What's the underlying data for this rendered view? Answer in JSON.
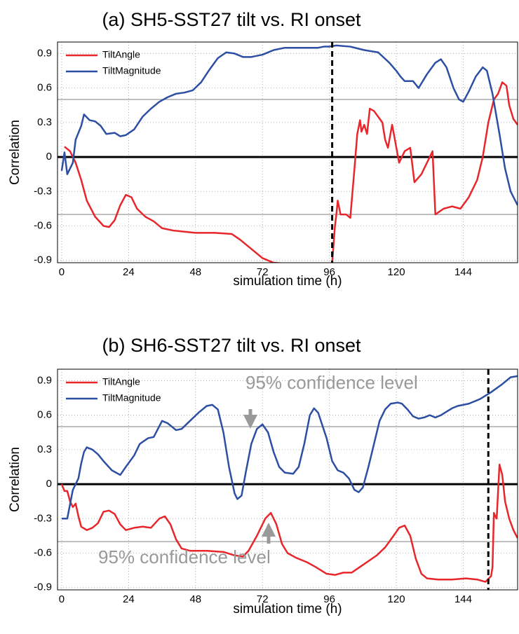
{
  "chart_data": [
    {
      "type": "line",
      "title": "(a) SH5-SST27 tilt vs. RI onset",
      "xlabel": "simulation time (h)",
      "ylabel": "Correlation",
      "xlim": [
        -1.5,
        163.5
      ],
      "ylim": [
        -0.92,
        1.0
      ],
      "xticks": [
        0,
        24,
        48,
        72,
        96,
        120,
        144
      ],
      "yticks": [
        -0.9,
        -0.6,
        -0.3,
        0,
        0.3,
        0.6,
        0.9
      ],
      "grid": true,
      "legend": "upper left",
      "confidence_lines": [
        0.5,
        -0.5
      ],
      "zero_line": 0,
      "event_line": 97,
      "series": [
        {
          "name": "TiltAngle",
          "color": "#e8262b",
          "x": [
            1,
            3,
            5,
            7,
            9,
            12,
            15,
            17,
            19,
            21,
            23,
            25,
            27,
            30,
            33,
            36,
            40,
            44,
            48,
            55,
            61,
            64,
            68,
            72,
            76,
            82,
            90,
            96,
            97,
            98,
            98.5,
            99,
            100,
            102,
            103.5,
            105,
            106,
            107,
            107.5,
            108.5,
            109.5,
            110.5,
            112,
            113.5,
            115,
            116,
            117,
            118.5,
            119.5,
            121,
            123,
            125,
            126.5,
            129,
            133,
            134,
            137,
            140,
            143,
            146,
            149,
            151,
            153,
            155,
            156.5,
            158,
            159.5,
            160.5,
            162,
            163.5
          ],
          "values": [
            0.09,
            0.05,
            -0.05,
            -0.2,
            -0.38,
            -0.52,
            -0.6,
            -0.61,
            -0.55,
            -0.42,
            -0.33,
            -0.35,
            -0.45,
            -0.52,
            -0.56,
            -0.62,
            -0.64,
            -0.65,
            -0.66,
            -0.66,
            -0.67,
            -0.72,
            -0.8,
            -0.88,
            -0.92,
            -0.93,
            -0.94,
            -0.93,
            -0.92,
            -0.6,
            -0.5,
            -0.38,
            -0.5,
            -0.5,
            -0.53,
            -0.1,
            0.2,
            0.32,
            0.22,
            0.28,
            0.2,
            0.42,
            0.4,
            0.35,
            0.3,
            0.15,
            0.08,
            0.28,
            0.15,
            -0.05,
            0.05,
            0.08,
            -0.22,
            -0.15,
            0.05,
            -0.5,
            -0.45,
            -0.43,
            -0.45,
            -0.35,
            -0.2,
            0,
            0.3,
            0.5,
            0.55,
            0.65,
            0.62,
            0.45,
            0.33,
            0.28
          ]
        },
        {
          "name": "TiltMagnitude",
          "color": "#2d4fa3",
          "x": [
            0,
            1,
            2,
            4,
            5,
            7,
            8,
            10,
            12,
            14,
            16,
            19,
            21,
            23,
            26,
            29,
            32,
            35,
            38,
            41,
            44,
            47,
            50,
            53,
            56,
            59,
            62,
            65,
            68,
            72,
            76,
            80,
            86,
            92,
            94,
            96,
            98.5,
            103.5,
            108.5,
            113.5,
            117.5,
            120,
            121.5,
            123,
            126,
            128,
            131,
            134,
            136,
            138,
            140.5,
            142.5,
            144,
            146,
            148.5,
            151,
            152.5,
            154.5,
            157,
            159,
            161,
            163.5
          ],
          "values": [
            -0.12,
            0.04,
            -0.15,
            -0.05,
            0.15,
            0.27,
            0.37,
            0.32,
            0.31,
            0.27,
            0.2,
            0.21,
            0.18,
            0.19,
            0.24,
            0.35,
            0.42,
            0.48,
            0.52,
            0.55,
            0.56,
            0.58,
            0.65,
            0.76,
            0.86,
            0.91,
            0.9,
            0.87,
            0.87,
            0.89,
            0.93,
            0.95,
            0.95,
            0.95,
            0.96,
            0.96,
            0.97,
            0.96,
            0.93,
            0.91,
            0.82,
            0.75,
            0.7,
            0.66,
            0.66,
            0.6,
            0.72,
            0.82,
            0.85,
            0.78,
            0.6,
            0.5,
            0.48,
            0.57,
            0.7,
            0.78,
            0.75,
            0.55,
            0.2,
            -0.1,
            -0.3,
            -0.42
          ]
        }
      ]
    },
    {
      "type": "line",
      "title": "(b) SH6-SST27 tilt vs. RI onset",
      "xlabel": "simulation time (h)",
      "ylabel": "Correlation",
      "xlim": [
        -1.5,
        163.5
      ],
      "ylim": [
        -0.92,
        1.0
      ],
      "xticks": [
        0,
        24,
        48,
        72,
        96,
        120,
        144
      ],
      "yticks": [
        -0.9,
        -0.6,
        -0.3,
        0,
        0.3,
        0.6,
        0.9
      ],
      "grid": true,
      "legend": "upper left",
      "confidence_lines": [
        0.5,
        -0.5
      ],
      "zero_line": 0,
      "event_line": 153,
      "annotations": [
        "95% confidence level",
        "95% confidence level"
      ],
      "series": [
        {
          "name": "TiltAngle",
          "color": "#e8262b",
          "x": [
            0,
            1,
            2,
            3,
            4,
            5,
            6,
            7,
            9,
            11,
            13,
            15,
            17,
            19,
            21,
            23,
            26,
            29,
            32,
            35,
            37,
            39,
            41,
            43,
            46,
            52,
            58,
            62,
            65,
            67,
            70,
            73,
            75,
            77,
            79,
            81,
            84,
            88,
            91,
            95,
            98,
            101,
            104,
            107,
            110,
            113,
            116,
            119,
            121,
            123,
            125,
            127,
            129,
            131,
            135,
            140,
            145,
            149,
            152,
            154,
            154.5,
            155,
            155.5,
            156,
            157,
            158,
            159,
            160.5,
            162,
            163.5
          ],
          "values": [
            0,
            -0.06,
            -0.06,
            -0.15,
            -0.2,
            -0.17,
            -0.28,
            -0.37,
            -0.4,
            -0.38,
            -0.34,
            -0.24,
            -0.23,
            -0.26,
            -0.35,
            -0.4,
            -0.38,
            -0.37,
            -0.38,
            -0.3,
            -0.28,
            -0.35,
            -0.48,
            -0.56,
            -0.58,
            -0.58,
            -0.59,
            -0.62,
            -0.63,
            -0.58,
            -0.45,
            -0.3,
            -0.25,
            -0.35,
            -0.52,
            -0.6,
            -0.64,
            -0.68,
            -0.72,
            -0.78,
            -0.79,
            -0.77,
            -0.77,
            -0.72,
            -0.67,
            -0.62,
            -0.55,
            -0.45,
            -0.38,
            -0.36,
            -0.45,
            -0.65,
            -0.78,
            -0.82,
            -0.83,
            -0.83,
            -0.82,
            -0.83,
            -0.85,
            -0.8,
            -0.72,
            -0.25,
            -0.28,
            -0.3,
            0.17,
            0.08,
            -0.15,
            -0.3,
            -0.4,
            -0.47
          ]
        },
        {
          "name": "TiltMagnitude",
          "color": "#2d4fa3",
          "x": [
            0,
            2,
            4,
            6,
            7,
            8,
            9,
            11,
            13,
            15,
            18,
            21,
            23,
            26,
            28,
            31,
            33,
            36,
            38,
            41,
            43,
            46,
            49,
            52,
            54,
            56,
            58,
            60,
            62,
            63,
            64.5,
            66,
            68,
            70,
            72,
            74,
            76,
            78,
            80,
            83,
            85,
            87,
            89,
            90.5,
            92,
            95,
            97,
            99,
            101,
            103,
            105,
            106.5,
            108,
            110,
            112,
            114,
            116,
            118,
            120.5,
            122,
            124,
            126,
            128,
            130,
            132,
            134,
            136,
            138,
            140,
            142,
            146,
            150,
            154,
            158,
            161,
            163.5
          ],
          "values": [
            -0.3,
            -0.3,
            -0.05,
            0.05,
            0.18,
            0.28,
            0.32,
            0.3,
            0.26,
            0.2,
            0.12,
            0.08,
            0.15,
            0.25,
            0.35,
            0.4,
            0.41,
            0.55,
            0.53,
            0.47,
            0.48,
            0.55,
            0.62,
            0.68,
            0.69,
            0.65,
            0.45,
            0.15,
            -0.08,
            -0.13,
            -0.1,
            0.1,
            0.35,
            0.48,
            0.52,
            0.45,
            0.28,
            0.15,
            0.1,
            0.09,
            0.15,
            0.35,
            0.6,
            0.66,
            0.62,
            0.4,
            0.2,
            0.12,
            0.1,
            0.05,
            -0.05,
            -0.07,
            -0.03,
            0.15,
            0.35,
            0.55,
            0.65,
            0.7,
            0.71,
            0.7,
            0.65,
            0.59,
            0.57,
            0.58,
            0.6,
            0.58,
            0.6,
            0.63,
            0.66,
            0.68,
            0.7,
            0.74,
            0.8,
            0.87,
            0.93,
            0.94
          ]
        }
      ]
    }
  ]
}
